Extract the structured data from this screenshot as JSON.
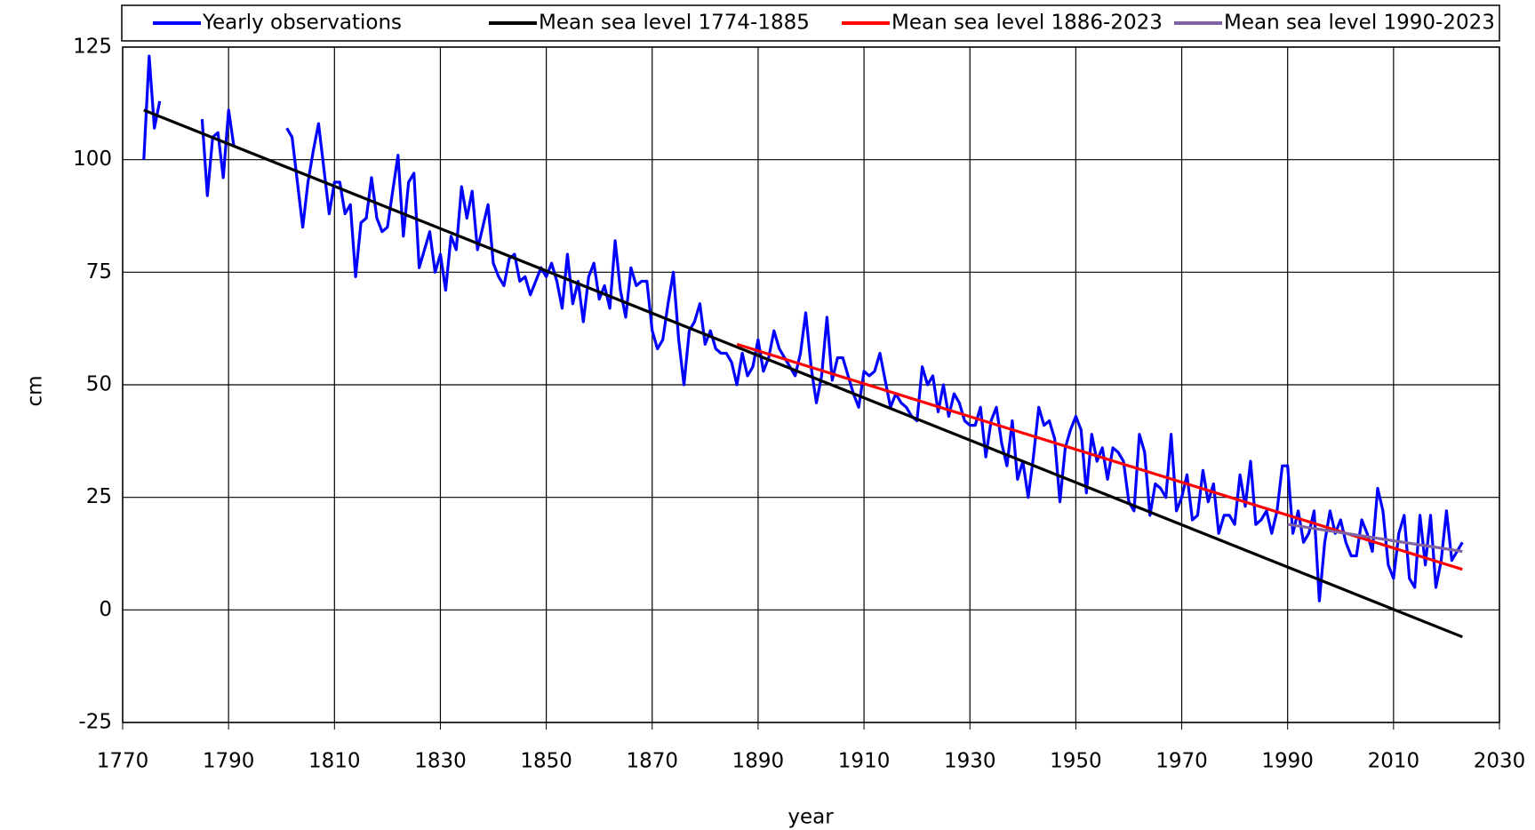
{
  "chart_data": {
    "type": "line",
    "x_label": "year",
    "y_label": "cm",
    "x": [
      1774,
      1775,
      1776,
      1777,
      1778,
      1779,
      1780,
      1781,
      1782,
      1783,
      1784,
      1785,
      1786,
      1787,
      1788,
      1789,
      1790,
      1791,
      1792,
      1793,
      1794,
      1795,
      1796,
      1797,
      1798,
      1799,
      1800,
      1801,
      1802,
      1803,
      1804,
      1805,
      1806,
      1807,
      1808,
      1809,
      1810,
      1811,
      1812,
      1813,
      1814,
      1815,
      1816,
      1817,
      1818,
      1819,
      1820,
      1821,
      1822,
      1823,
      1824,
      1825,
      1826,
      1827,
      1828,
      1829,
      1830,
      1831,
      1832,
      1833,
      1834,
      1835,
      1836,
      1837,
      1838,
      1839,
      1840,
      1841,
      1842,
      1843,
      1844,
      1845,
      1846,
      1847,
      1848,
      1849,
      1850,
      1851,
      1852,
      1853,
      1854,
      1855,
      1856,
      1857,
      1858,
      1859,
      1860,
      1861,
      1862,
      1863,
      1864,
      1865,
      1866,
      1867,
      1868,
      1869,
      1870,
      1871,
      1872,
      1873,
      1874,
      1875,
      1876,
      1877,
      1878,
      1879,
      1880,
      1881,
      1882,
      1883,
      1884,
      1885,
      1886,
      1887,
      1888,
      1889,
      1890,
      1891,
      1892,
      1893,
      1894,
      1895,
      1896,
      1897,
      1898,
      1899,
      1900,
      1901,
      1902,
      1903,
      1904,
      1905,
      1906,
      1907,
      1908,
      1909,
      1910,
      1911,
      1912,
      1913,
      1914,
      1915,
      1916,
      1917,
      1918,
      1919,
      1920,
      1921,
      1922,
      1923,
      1924,
      1925,
      1926,
      1927,
      1928,
      1929,
      1930,
      1931,
      1932,
      1933,
      1934,
      1935,
      1936,
      1937,
      1938,
      1939,
      1940,
      1941,
      1942,
      1943,
      1944,
      1945,
      1946,
      1947,
      1948,
      1949,
      1950,
      1951,
      1952,
      1953,
      1954,
      1955,
      1956,
      1957,
      1958,
      1959,
      1960,
      1961,
      1962,
      1963,
      1964,
      1965,
      1966,
      1967,
      1968,
      1969,
      1970,
      1971,
      1972,
      1973,
      1974,
      1975,
      1976,
      1977,
      1978,
      1979,
      1980,
      1981,
      1982,
      1983,
      1984,
      1985,
      1986,
      1987,
      1988,
      1989,
      1990,
      1991,
      1992,
      1993,
      1994,
      1995,
      1996,
      1997,
      1998,
      1999,
      2000,
      2001,
      2002,
      2003,
      2004,
      2005,
      2006,
      2007,
      2008,
      2009,
      2010,
      2011,
      2012,
      2013,
      2014,
      2015,
      2016,
      2017,
      2018,
      2019,
      2020,
      2021,
      2022,
      2023
    ],
    "series": [
      {
        "name": "Yearly observations",
        "color": "#0000ff",
        "values": [
          100,
          123,
          107,
          113,
          null,
          null,
          null,
          null,
          null,
          null,
          null,
          109,
          92,
          105,
          106,
          96,
          111,
          103,
          null,
          null,
          null,
          null,
          null,
          null,
          null,
          null,
          null,
          107,
          105,
          95,
          85,
          95,
          102,
          108,
          98,
          88,
          95,
          95,
          88,
          90,
          74,
          86,
          87,
          96,
          87,
          84,
          85,
          93,
          101,
          83,
          95,
          97,
          76,
          80,
          84,
          75,
          79,
          71,
          83,
          80,
          94,
          87,
          93,
          80,
          85,
          90,
          77,
          74,
          72,
          78,
          79,
          73,
          74,
          70,
          73,
          76,
          74,
          77,
          73,
          67,
          79,
          68,
          73,
          64,
          74,
          77,
          69,
          72,
          67,
          82,
          71,
          65,
          76,
          72,
          73,
          73,
          62,
          58,
          60,
          68,
          75,
          60,
          50,
          62,
          64,
          68,
          59,
          62,
          58,
          57,
          57,
          55,
          50,
          57,
          52,
          54,
          60,
          53,
          56,
          62,
          58,
          56,
          54,
          52,
          57,
          66,
          54,
          46,
          52,
          65,
          51,
          56,
          56,
          52,
          48,
          45,
          53,
          52,
          53,
          57,
          51,
          45,
          48,
          46,
          45,
          43,
          42,
          54,
          50,
          52,
          44,
          50,
          43,
          48,
          46,
          42,
          41,
          41,
          45,
          34,
          42,
          45,
          37,
          32,
          42,
          29,
          33,
          25,
          34,
          45,
          41,
          42,
          38,
          24,
          36,
          40,
          43,
          40,
          26,
          39,
          33,
          36,
          29,
          36,
          35,
          33,
          24,
          22,
          39,
          35,
          21,
          28,
          27,
          25,
          39,
          22,
          25,
          30,
          20,
          21,
          31,
          24,
          28,
          17,
          21,
          21,
          19,
          30,
          23,
          33,
          19,
          20,
          22,
          17,
          22,
          32,
          32,
          17,
          22,
          15,
          17,
          22,
          2,
          15,
          22,
          17,
          20,
          15,
          12,
          12,
          20,
          17,
          13,
          27,
          22,
          10,
          7,
          17,
          21,
          7,
          5,
          21,
          10,
          21,
          5,
          11,
          22,
          11,
          13,
          15
        ]
      },
      {
        "name": "Mean sea level 1774-1885",
        "color": "#000000",
        "x": [
          1774,
          2023
        ],
        "values": [
          111,
          -6
        ]
      },
      {
        "name": "Mean sea level 1886-2023",
        "color": "#ff0000",
        "x": [
          1886,
          2023
        ],
        "values": [
          59,
          9
        ]
      },
      {
        "name": "Mean sea level 1990-2023",
        "color": "#8064a2",
        "x": [
          1990,
          2023
        ],
        "values": [
          19,
          13
        ]
      }
    ],
    "xlim": [
      1770,
      2030
    ],
    "xticks": [
      1770,
      1790,
      1810,
      1830,
      1850,
      1870,
      1890,
      1910,
      1930,
      1950,
      1970,
      1990,
      2010,
      2030
    ],
    "ylim": [
      -25,
      125
    ],
    "yticks": [
      -25,
      0,
      25,
      50,
      75,
      100,
      125
    ],
    "grid": true,
    "legend": "top"
  }
}
